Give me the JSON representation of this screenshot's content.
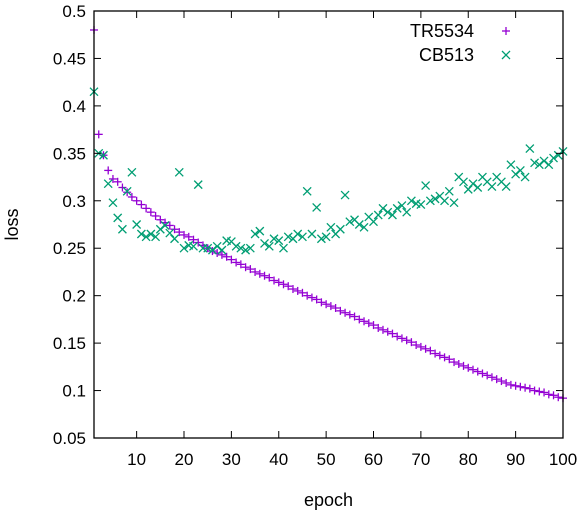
{
  "chart_data": {
    "type": "scatter",
    "xlabel": "epoch",
    "ylabel": "loss",
    "xlim": [
      1,
      100
    ],
    "ylim": [
      0.05,
      0.5
    ],
    "xticks": [
      10,
      20,
      30,
      40,
      50,
      60,
      70,
      80,
      90,
      100
    ],
    "yticks": [
      0.05,
      0.1,
      0.15,
      0.2,
      0.25,
      0.3,
      0.35,
      0.4,
      0.45,
      0.5
    ],
    "grid": false,
    "legend_position": "top-right",
    "series": [
      {
        "name": "TR5534",
        "marker": "plus",
        "color": "#9400d3",
        "x": [
          1,
          2,
          3,
          4,
          5,
          6,
          7,
          8,
          9,
          10,
          11,
          12,
          13,
          14,
          15,
          16,
          17,
          18,
          19,
          20,
          21,
          22,
          23,
          24,
          25,
          26,
          27,
          28,
          29,
          30,
          31,
          32,
          33,
          34,
          35,
          36,
          37,
          38,
          39,
          40,
          41,
          42,
          43,
          44,
          45,
          46,
          47,
          48,
          49,
          50,
          51,
          52,
          53,
          54,
          55,
          56,
          57,
          58,
          59,
          60,
          61,
          62,
          63,
          64,
          65,
          66,
          67,
          68,
          69,
          70,
          71,
          72,
          73,
          74,
          75,
          76,
          77,
          78,
          79,
          80,
          81,
          82,
          83,
          84,
          85,
          86,
          87,
          88,
          89,
          90,
          91,
          92,
          93,
          94,
          95,
          96,
          97,
          98,
          99,
          100
        ],
        "y": [
          0.48,
          0.37,
          0.348,
          0.332,
          0.323,
          0.32,
          0.314,
          0.309,
          0.304,
          0.3,
          0.296,
          0.292,
          0.288,
          0.284,
          0.28,
          0.277,
          0.274,
          0.27,
          0.267,
          0.264,
          0.262,
          0.259,
          0.256,
          0.253,
          0.25,
          0.247,
          0.245,
          0.243,
          0.241,
          0.238,
          0.235,
          0.233,
          0.23,
          0.228,
          0.225,
          0.223,
          0.221,
          0.219,
          0.216,
          0.214,
          0.212,
          0.21,
          0.207,
          0.205,
          0.203,
          0.2,
          0.198,
          0.196,
          0.193,
          0.191,
          0.189,
          0.187,
          0.184,
          0.182,
          0.18,
          0.178,
          0.175,
          0.173,
          0.171,
          0.169,
          0.166,
          0.164,
          0.162,
          0.16,
          0.157,
          0.155,
          0.153,
          0.151,
          0.148,
          0.146,
          0.144,
          0.142,
          0.139,
          0.137,
          0.135,
          0.133,
          0.13,
          0.128,
          0.126,
          0.124,
          0.122,
          0.12,
          0.118,
          0.116,
          0.114,
          0.112,
          0.11,
          0.108,
          0.106,
          0.105,
          0.104,
          0.103,
          0.102,
          0.1,
          0.099,
          0.098,
          0.096,
          0.095,
          0.093,
          0.092
        ]
      },
      {
        "name": "CB513",
        "marker": "cross",
        "color": "#009e73",
        "x": [
          1,
          2,
          3,
          4,
          5,
          6,
          7,
          8,
          9,
          10,
          11,
          12,
          13,
          14,
          15,
          16,
          17,
          18,
          19,
          20,
          21,
          22,
          23,
          24,
          25,
          26,
          27,
          28,
          29,
          30,
          31,
          32,
          33,
          34,
          35,
          36,
          37,
          38,
          39,
          40,
          41,
          42,
          43,
          44,
          45,
          46,
          47,
          48,
          49,
          50,
          51,
          52,
          53,
          54,
          55,
          56,
          57,
          58,
          59,
          60,
          61,
          62,
          63,
          64,
          65,
          66,
          67,
          68,
          69,
          70,
          71,
          72,
          73,
          74,
          75,
          76,
          77,
          78,
          79,
          80,
          81,
          82,
          83,
          84,
          85,
          86,
          87,
          88,
          89,
          90,
          91,
          92,
          93,
          94,
          95,
          96,
          97,
          98,
          99,
          100
        ],
        "y": [
          0.415,
          0.35,
          0.348,
          0.318,
          0.298,
          0.282,
          0.27,
          0.31,
          0.33,
          0.275,
          0.265,
          0.262,
          0.265,
          0.262,
          0.27,
          0.274,
          0.266,
          0.26,
          0.33,
          0.25,
          0.253,
          0.252,
          0.317,
          0.25,
          0.25,
          0.248,
          0.252,
          0.248,
          0.258,
          0.257,
          0.252,
          0.25,
          0.248,
          0.25,
          0.265,
          0.268,
          0.255,
          0.252,
          0.26,
          0.258,
          0.25,
          0.262,
          0.26,
          0.265,
          0.262,
          0.31,
          0.265,
          0.293,
          0.26,
          0.262,
          0.272,
          0.265,
          0.27,
          0.306,
          0.278,
          0.28,
          0.275,
          0.272,
          0.283,
          0.278,
          0.285,
          0.292,
          0.288,
          0.285,
          0.292,
          0.295,
          0.288,
          0.3,
          0.297,
          0.296,
          0.316,
          0.3,
          0.302,
          0.305,
          0.3,
          0.31,
          0.298,
          0.325,
          0.32,
          0.312,
          0.318,
          0.314,
          0.325,
          0.32,
          0.315,
          0.325,
          0.32,
          0.315,
          0.338,
          0.328,
          0.332,
          0.325,
          0.355,
          0.34,
          0.338,
          0.342,
          0.338,
          0.345,
          0.348,
          0.352
        ]
      }
    ]
  }
}
